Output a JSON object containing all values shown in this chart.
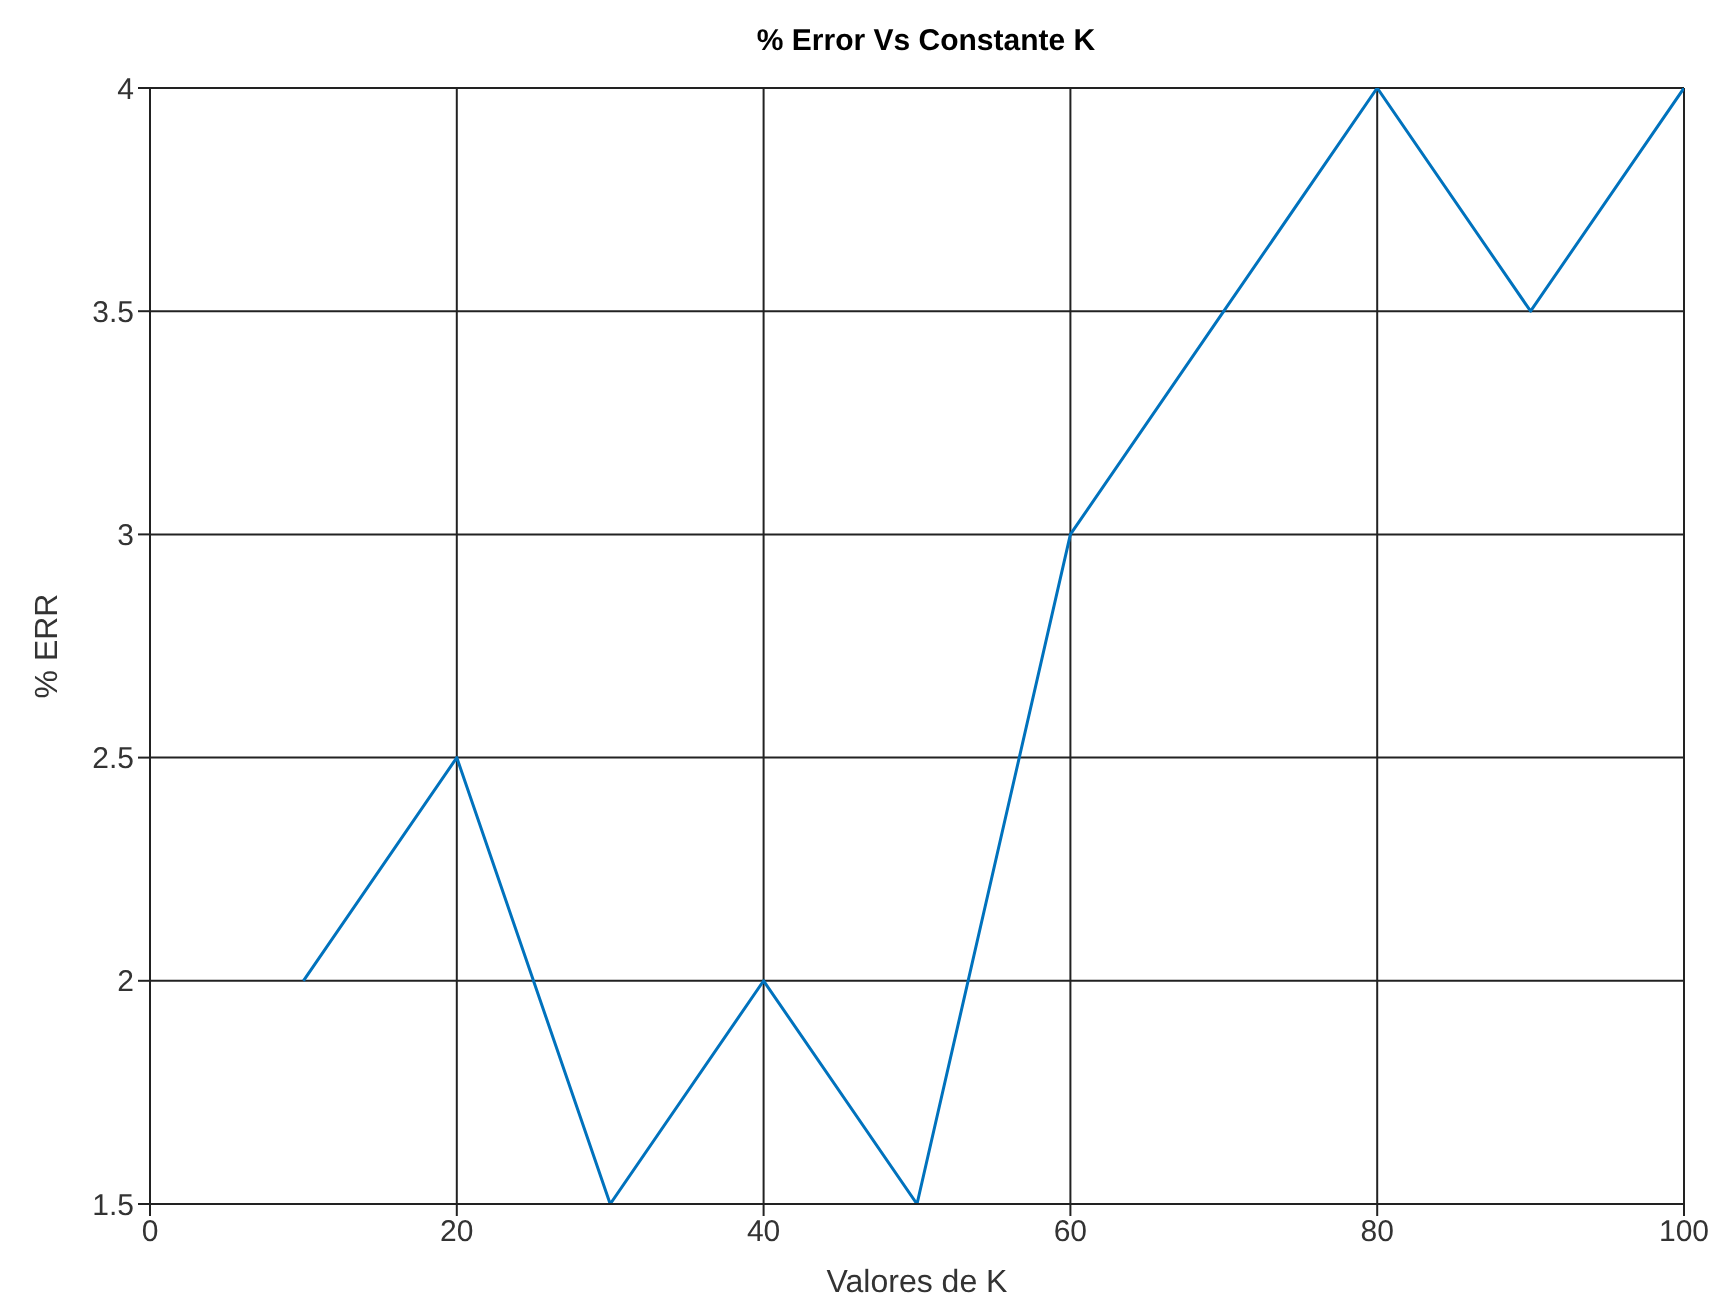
{
  "chart_data": {
    "type": "line",
    "title": "% Error Vs Constante K",
    "xlabel": "Valores de K",
    "ylabel": "% ERR",
    "x": [
      10,
      20,
      30,
      40,
      50,
      60,
      70,
      80,
      90,
      100
    ],
    "series": [
      {
        "color": "#0072bd",
        "values": [
          2,
          2.5,
          1.5,
          2,
          1.5,
          3,
          3.5,
          4,
          3.5,
          4
        ]
      }
    ],
    "xlim": [
      0,
      100
    ],
    "xticks": [
      0,
      20,
      40,
      60,
      80,
      100
    ],
    "ylim": [
      1.5,
      4
    ],
    "yticks": [
      1.5,
      2,
      2.5,
      3,
      3.5,
      4
    ],
    "grid": true,
    "legend": false
  }
}
